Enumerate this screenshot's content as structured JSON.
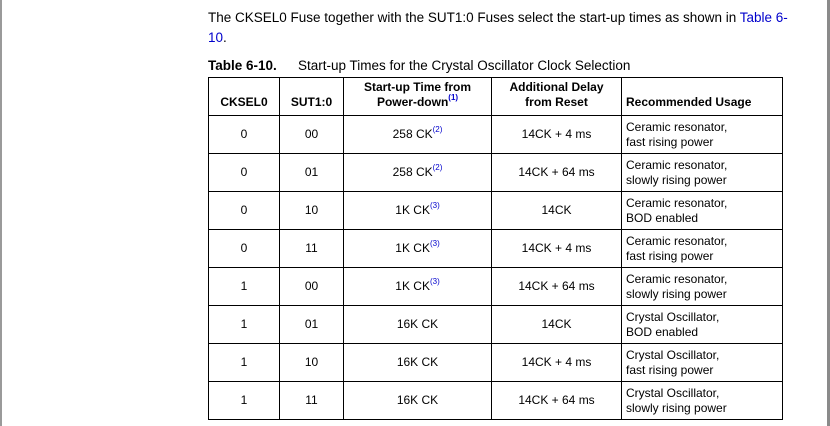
{
  "intro": {
    "text": "The CKSEL0 Fuse together with the SUT1:0 Fuses select the start-up times as shown in ",
    "link": "Table 6-10",
    "end": "."
  },
  "caption": {
    "number": "Table 6-10.",
    "title": "Start-up Times for the Crystal Oscillator Clock Selection"
  },
  "table": {
    "headers": {
      "cksel0": "CKSEL0",
      "sut": "SUT1:0",
      "startup_line1": "Start-up Time from",
      "startup_line2": "Power-down",
      "startup_note": "(1)",
      "delay_line1": "Additional Delay",
      "delay_line2": "from Reset",
      "usage": "Recommended Usage"
    },
    "rows": [
      {
        "cksel0": "0",
        "sut": "00",
        "startup": "258 CK",
        "note": "(2)",
        "delay": "14CK + 4 ms",
        "usage1": "Ceramic resonator,",
        "usage2": "fast rising power"
      },
      {
        "cksel0": "0",
        "sut": "01",
        "startup": "258 CK",
        "note": "(2)",
        "delay": "14CK + 64 ms",
        "usage1": "Ceramic resonator,",
        "usage2": "slowly rising power"
      },
      {
        "cksel0": "0",
        "sut": "10",
        "startup": "1K CK",
        "note": "(3)",
        "delay": "14CK",
        "usage1": "Ceramic resonator,",
        "usage2": "BOD enabled"
      },
      {
        "cksel0": "0",
        "sut": "11",
        "startup": "1K CK",
        "note": "(3)",
        "delay": "14CK + 4 ms",
        "usage1": "Ceramic resonator,",
        "usage2": "fast rising power"
      },
      {
        "cksel0": "1",
        "sut": "00",
        "startup": "1K CK",
        "note": "(3)",
        "delay": "14CK + 64 ms",
        "usage1": "Ceramic resonator,",
        "usage2": "slowly rising power"
      },
      {
        "cksel0": "1",
        "sut": "01",
        "startup": "16K CK",
        "note": "",
        "delay": "14CK",
        "usage1": "Crystal Oscillator,",
        "usage2": "BOD enabled"
      },
      {
        "cksel0": "1",
        "sut": "10",
        "startup": "16K CK",
        "note": "",
        "delay": "14CK + 4 ms",
        "usage1": "Crystal Oscillator,",
        "usage2": "fast rising power"
      },
      {
        "cksel0": "1",
        "sut": "11",
        "startup": "16K CK",
        "note": "",
        "delay": "14CK + 64 ms",
        "usage1": "Crystal Oscillator,",
        "usage2": "slowly rising power"
      }
    ]
  }
}
